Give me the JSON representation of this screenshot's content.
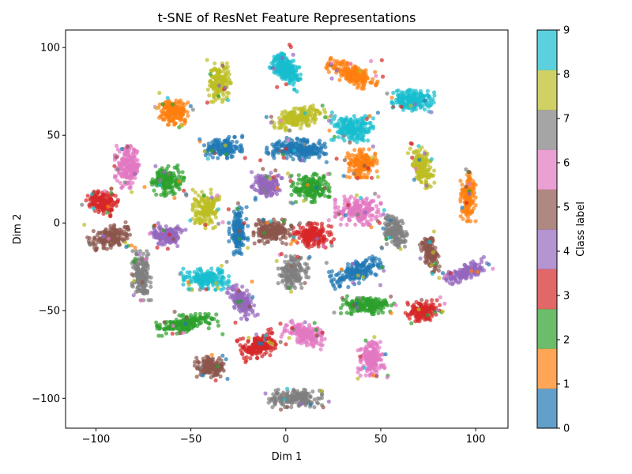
{
  "chart_data": {
    "type": "scatter",
    "title": "t-SNE of ResNet Feature Representations",
    "xlabel": "Dim 1",
    "ylabel": "Dim 2",
    "xlim": [
      -116,
      117
    ],
    "ylim": [
      -117,
      110
    ],
    "xticks": [
      -100,
      -50,
      0,
      50,
      100
    ],
    "yticks": [
      -100,
      -50,
      0,
      50,
      100
    ],
    "grid": false,
    "colormap": "tab10",
    "point_alpha": 0.7,
    "class_colors": [
      "#1f77b4",
      "#ff7f0e",
      "#2ca02c",
      "#d62728",
      "#9467bd",
      "#8c564b",
      "#e377c2",
      "#7f7f7f",
      "#bcbd22",
      "#17becf"
    ],
    "colorbar": {
      "label": "Class label",
      "range": [
        0,
        9
      ],
      "ticks": [
        0,
        1,
        2,
        3,
        4,
        5,
        6,
        7,
        8,
        9
      ]
    },
    "clusters": [
      {
        "label": 9,
        "cx": 0,
        "cy": 88,
        "rx": 6,
        "ry": 12,
        "rot": 40,
        "n": 220
      },
      {
        "label": 9,
        "cx": 35,
        "cy": 54,
        "rx": 11,
        "ry": 7,
        "rot": 0,
        "n": 200
      },
      {
        "label": 9,
        "cx": 67,
        "cy": 70,
        "rx": 11,
        "ry": 6,
        "rot": -5,
        "n": 180
      },
      {
        "label": 9,
        "cx": -42,
        "cy": -32,
        "rx": 12,
        "ry": 6,
        "rot": 0,
        "n": 170
      },
      {
        "label": 1,
        "cx": 35,
        "cy": 85,
        "rx": 14,
        "ry": 6,
        "rot": -25,
        "n": 200
      },
      {
        "label": 1,
        "cx": -59,
        "cy": 64,
        "rx": 8,
        "ry": 8,
        "rot": 0,
        "n": 170
      },
      {
        "label": 1,
        "cx": 40,
        "cy": 34,
        "rx": 8,
        "ry": 8,
        "rot": 0,
        "n": 170
      },
      {
        "label": 1,
        "cx": 96,
        "cy": 15,
        "rx": 4,
        "ry": 14,
        "rot": 0,
        "n": 150
      },
      {
        "label": 8,
        "cx": -35,
        "cy": 80,
        "rx": 6,
        "ry": 11,
        "rot": 0,
        "n": 160
      },
      {
        "label": 8,
        "cx": 7,
        "cy": 60,
        "rx": 14,
        "ry": 6,
        "rot": 20,
        "n": 180
      },
      {
        "label": 8,
        "cx": 72,
        "cy": 32,
        "rx": 5,
        "ry": 12,
        "rot": 20,
        "n": 150
      },
      {
        "label": 8,
        "cx": -42,
        "cy": 8,
        "rx": 7,
        "ry": 11,
        "rot": 0,
        "n": 160
      },
      {
        "label": 0,
        "cx": -33,
        "cy": 43,
        "rx": 10,
        "ry": 6,
        "rot": 0,
        "n": 150
      },
      {
        "label": 0,
        "cx": 6,
        "cy": 42,
        "rx": 16,
        "ry": 6,
        "rot": -5,
        "n": 240
      },
      {
        "label": 0,
        "cx": -25,
        "cy": -5,
        "rx": 5,
        "ry": 14,
        "rot": 0,
        "n": 150
      },
      {
        "label": 0,
        "cx": 37,
        "cy": -28,
        "rx": 14,
        "ry": 6,
        "rot": 25,
        "n": 170
      },
      {
        "label": 6,
        "cx": -83,
        "cy": 32,
        "rx": 7,
        "ry": 12,
        "rot": 0,
        "n": 190
      },
      {
        "label": 6,
        "cx": 38,
        "cy": 7,
        "rx": 12,
        "ry": 8,
        "rot": 0,
        "n": 190
      },
      {
        "label": 6,
        "cx": 10,
        "cy": -63,
        "rx": 11,
        "ry": 6,
        "rot": -20,
        "n": 170
      },
      {
        "label": 6,
        "cx": 45,
        "cy": -77,
        "rx": 7,
        "ry": 10,
        "rot": 0,
        "n": 160
      },
      {
        "label": 2,
        "cx": -62,
        "cy": 24,
        "rx": 9,
        "ry": 8,
        "rot": 25,
        "n": 160
      },
      {
        "label": 2,
        "cx": 13,
        "cy": 20,
        "rx": 10,
        "ry": 8,
        "rot": 0,
        "n": 180
      },
      {
        "label": 2,
        "cx": 43,
        "cy": -47,
        "rx": 14,
        "ry": 5,
        "rot": 0,
        "n": 180
      },
      {
        "label": 2,
        "cx": -52,
        "cy": -57,
        "rx": 16,
        "ry": 5,
        "rot": 10,
        "n": 180
      },
      {
        "label": 3,
        "cx": -97,
        "cy": 12,
        "rx": 8,
        "ry": 6,
        "rot": -20,
        "n": 150
      },
      {
        "label": 3,
        "cx": 14,
        "cy": -7,
        "rx": 10,
        "ry": 7,
        "rot": 0,
        "n": 170
      },
      {
        "label": 3,
        "cx": -14,
        "cy": -70,
        "rx": 10,
        "ry": 7,
        "rot": 20,
        "n": 180
      },
      {
        "label": 3,
        "cx": 72,
        "cy": -50,
        "rx": 9,
        "ry": 6,
        "rot": 0,
        "n": 150
      },
      {
        "label": 5,
        "cx": -93,
        "cy": -8,
        "rx": 11,
        "ry": 6,
        "rot": 20,
        "n": 170
      },
      {
        "label": 5,
        "cx": -7,
        "cy": -5,
        "rx": 10,
        "ry": 7,
        "rot": 0,
        "n": 180
      },
      {
        "label": 5,
        "cx": 76,
        "cy": -17,
        "rx": 4,
        "ry": 11,
        "rot": 15,
        "n": 140
      },
      {
        "label": 5,
        "cx": -40,
        "cy": -82,
        "rx": 8,
        "ry": 6,
        "rot": 0,
        "n": 150
      },
      {
        "label": 4,
        "cx": -63,
        "cy": -7,
        "rx": 8,
        "ry": 6,
        "rot": -10,
        "n": 150
      },
      {
        "label": 4,
        "cx": -10,
        "cy": 22,
        "rx": 8,
        "ry": 7,
        "rot": 0,
        "n": 170
      },
      {
        "label": 4,
        "cx": -23,
        "cy": -45,
        "rx": 5,
        "ry": 10,
        "rot": 25,
        "n": 150
      },
      {
        "label": 4,
        "cx": 95,
        "cy": -28,
        "rx": 12,
        "ry": 4,
        "rot": 25,
        "n": 150
      },
      {
        "label": 7,
        "cx": -76,
        "cy": -30,
        "rx": 5,
        "ry": 14,
        "rot": 0,
        "n": 170
      },
      {
        "label": 7,
        "cx": 57,
        "cy": -5,
        "rx": 6,
        "ry": 10,
        "rot": 20,
        "n": 150
      },
      {
        "label": 7,
        "cx": 5,
        "cy": -100,
        "rx": 14,
        "ry": 5,
        "rot": 0,
        "n": 180
      },
      {
        "label": 7,
        "cx": 4,
        "cy": -28,
        "rx": 8,
        "ry": 9,
        "rot": 0,
        "n": 160
      }
    ]
  }
}
